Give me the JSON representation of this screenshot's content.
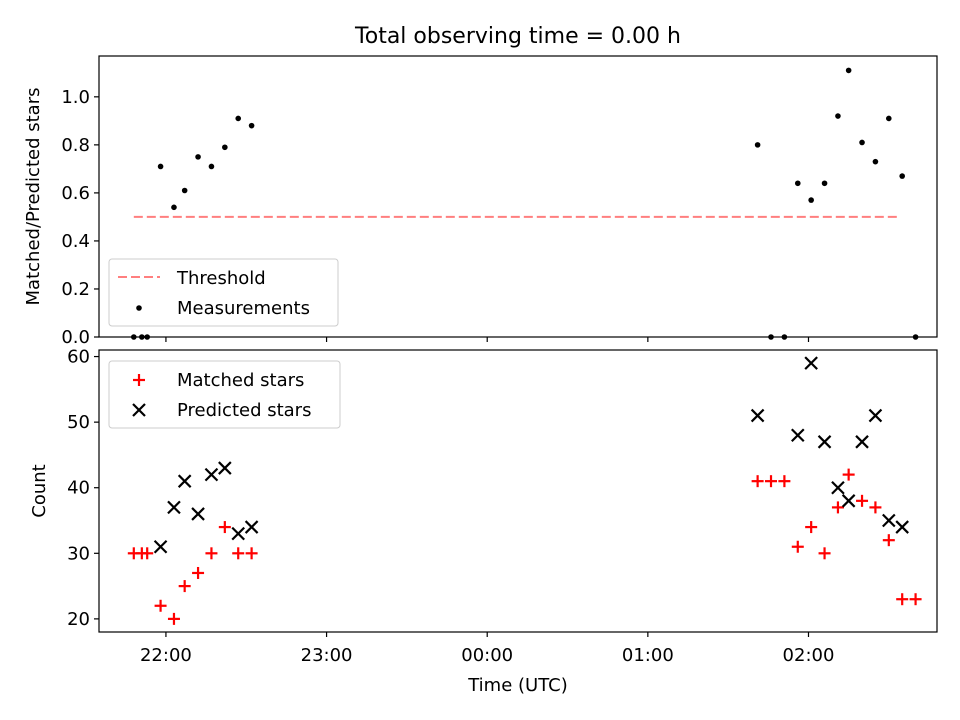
{
  "title": "Total observing time = 0.00 h",
  "xlabel": "Time (UTC)",
  "x_tick_labels": [
    "22:00",
    "23:00",
    "00:00",
    "01:00",
    "02:00"
  ],
  "colors": {
    "threshold": "#ff7f7f",
    "measurements": "#000000",
    "matched": "#ff0000",
    "predicted": "#000000"
  },
  "chart_data": [
    {
      "type": "scatter",
      "ylabel": "Matched/Predicted stars",
      "ylim": [
        0,
        1.17
      ],
      "xlim": [
        "21:35",
        "02:48"
      ],
      "y_ticks": [
        "0.0",
        "0.2",
        "0.4",
        "0.6",
        "0.8",
        "1.0"
      ],
      "legend": {
        "placement": "lower-left",
        "entries": [
          "Threshold",
          "Measurements"
        ]
      },
      "threshold": {
        "name": "Threshold",
        "value": 0.5,
        "x_range": [
          "21:48",
          "02:33"
        ]
      },
      "series": [
        {
          "name": "Measurements",
          "points": [
            [
              "21:48",
              0.0
            ],
            [
              "21:51",
              0.0
            ],
            [
              "21:53",
              0.0
            ],
            [
              "21:58",
              0.71
            ],
            [
              "22:03",
              0.54
            ],
            [
              "22:07",
              0.61
            ],
            [
              "22:12",
              0.75
            ],
            [
              "22:17",
              0.71
            ],
            [
              "22:22",
              0.79
            ],
            [
              "22:27",
              0.91
            ],
            [
              "22:32",
              0.88
            ],
            [
              "01:41",
              0.8
            ],
            [
              "01:46",
              0.0
            ],
            [
              "01:51",
              0.0
            ],
            [
              "01:56",
              0.64
            ],
            [
              "02:01",
              0.57
            ],
            [
              "02:06",
              0.64
            ],
            [
              "02:11",
              0.92
            ],
            [
              "02:15",
              1.11
            ],
            [
              "02:20",
              0.81
            ],
            [
              "02:25",
              0.73
            ],
            [
              "02:30",
              0.91
            ],
            [
              "02:35",
              0.67
            ],
            [
              "02:40",
              0.0
            ]
          ]
        }
      ]
    },
    {
      "type": "scatter",
      "ylabel": "Count",
      "ylim": [
        18,
        61
      ],
      "xlim": [
        "21:35",
        "02:48"
      ],
      "y_ticks": [
        "20",
        "30",
        "40",
        "50",
        "60"
      ],
      "legend": {
        "placement": "upper-left",
        "entries": [
          "Matched stars",
          "Predicted stars"
        ]
      },
      "series": [
        {
          "name": "Matched stars",
          "points": [
            [
              "21:48",
              30
            ],
            [
              "21:51",
              30
            ],
            [
              "21:53",
              30
            ],
            [
              "21:58",
              22
            ],
            [
              "22:03",
              20
            ],
            [
              "22:07",
              25
            ],
            [
              "22:12",
              27
            ],
            [
              "22:17",
              30
            ],
            [
              "22:22",
              34
            ],
            [
              "22:27",
              30
            ],
            [
              "22:32",
              30
            ],
            [
              "01:41",
              41
            ],
            [
              "01:46",
              41
            ],
            [
              "01:51",
              41
            ],
            [
              "01:56",
              31
            ],
            [
              "02:01",
              34
            ],
            [
              "02:06",
              30
            ],
            [
              "02:11",
              37
            ],
            [
              "02:15",
              42
            ],
            [
              "02:20",
              38
            ],
            [
              "02:25",
              37
            ],
            [
              "02:30",
              32
            ],
            [
              "02:35",
              23
            ],
            [
              "02:40",
              23
            ]
          ]
        },
        {
          "name": "Predicted stars",
          "points": [
            [
              "21:58",
              31
            ],
            [
              "22:03",
              37
            ],
            [
              "22:07",
              41
            ],
            [
              "22:12",
              36
            ],
            [
              "22:17",
              42
            ],
            [
              "22:22",
              43
            ],
            [
              "22:27",
              33
            ],
            [
              "22:32",
              34
            ],
            [
              "01:41",
              51
            ],
            [
              "01:56",
              48
            ],
            [
              "02:01",
              59
            ],
            [
              "02:06",
              47
            ],
            [
              "02:11",
              40
            ],
            [
              "02:15",
              38
            ],
            [
              "02:20",
              47
            ],
            [
              "02:25",
              51
            ],
            [
              "02:30",
              35
            ],
            [
              "02:35",
              34
            ]
          ]
        }
      ]
    }
  ]
}
